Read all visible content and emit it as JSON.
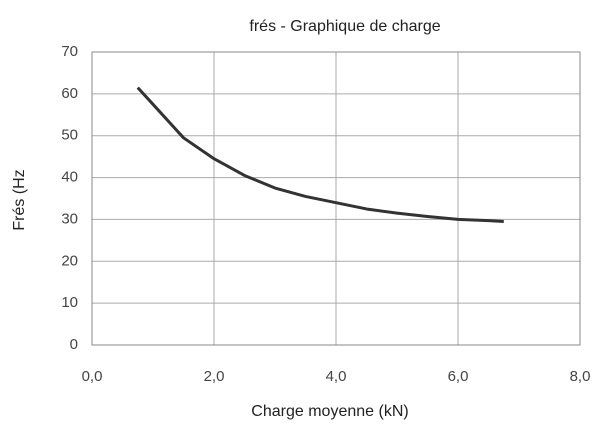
{
  "chart_data": {
    "type": "line",
    "title": "frés - Graphique de charge",
    "x_label": "Charge moyenne (kN)",
    "y_label": "Frés (Hz",
    "x": [
      0.75,
      1.0,
      1.5,
      2.0,
      2.5,
      3.0,
      3.5,
      4.0,
      4.5,
      5.0,
      5.5,
      6.0,
      6.5,
      6.75
    ],
    "series": [
      {
        "name": "frés",
        "color": "#333333",
        "values": [
          61.5,
          57.5,
          49.5,
          44.5,
          40.5,
          37.5,
          35.5,
          34,
          32.5,
          31.5,
          30.7,
          30,
          29.7,
          29.5
        ]
      }
    ],
    "xlim": [
      0,
      8
    ],
    "xticks": [
      {
        "value": 0,
        "label": "0,0"
      },
      {
        "value": 2,
        "label": "2,0"
      },
      {
        "value": 4,
        "label": "4,0"
      },
      {
        "value": 6,
        "label": "6,0"
      },
      {
        "value": 8,
        "label": "8,0"
      }
    ],
    "ylim": [
      0,
      70
    ],
    "yticks": [
      0,
      10,
      20,
      30,
      40,
      50,
      60,
      70
    ],
    "grid": true
  }
}
